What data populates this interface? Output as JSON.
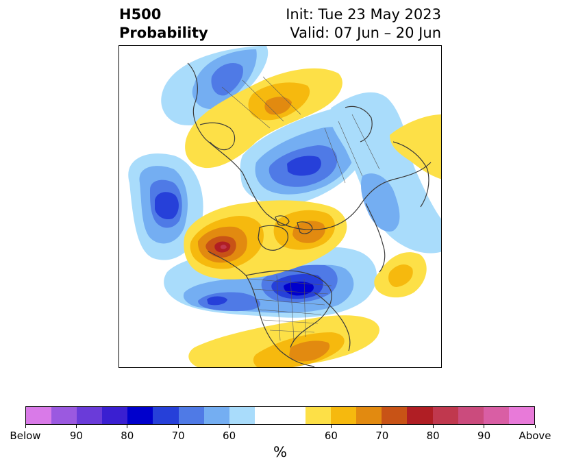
{
  "header": {
    "title_line1": "H500",
    "title_line2": "Probability",
    "init_text": "Init: Tue 23 May 2023",
    "valid_text": "Valid: 07 Jun – 20 Jun"
  },
  "colorbar": {
    "segments": [
      "#d97ae8",
      "#9b59e0",
      "#6a3bd9",
      "#3a1fd1",
      "#0000cc",
      "#2640d9",
      "#4f7ae6",
      "#74aef2",
      "#a9dcfb",
      "#ffffff",
      "#ffffff",
      "#fde047",
      "#f6b90e",
      "#e28a10",
      "#c85316",
      "#b01e24",
      "#c0384e",
      "#cb4b7d",
      "#d95ea4",
      "#e87ad9"
    ],
    "tick_labels": [
      "Below",
      "90",
      "80",
      "70",
      "60",
      "60",
      "70",
      "80",
      "90",
      "Above"
    ],
    "unit_label": "%"
  },
  "map": {
    "blue_levels": [
      "#a9dcfb",
      "#74aef2",
      "#4f7ae6",
      "#2640d9",
      "#0000cc"
    ],
    "red_levels": [
      "#fde047",
      "#f6b90e",
      "#e28a10",
      "#c85316",
      "#b01e24",
      "#c0384e"
    ],
    "coastline_color": "#3a3a3a"
  }
}
